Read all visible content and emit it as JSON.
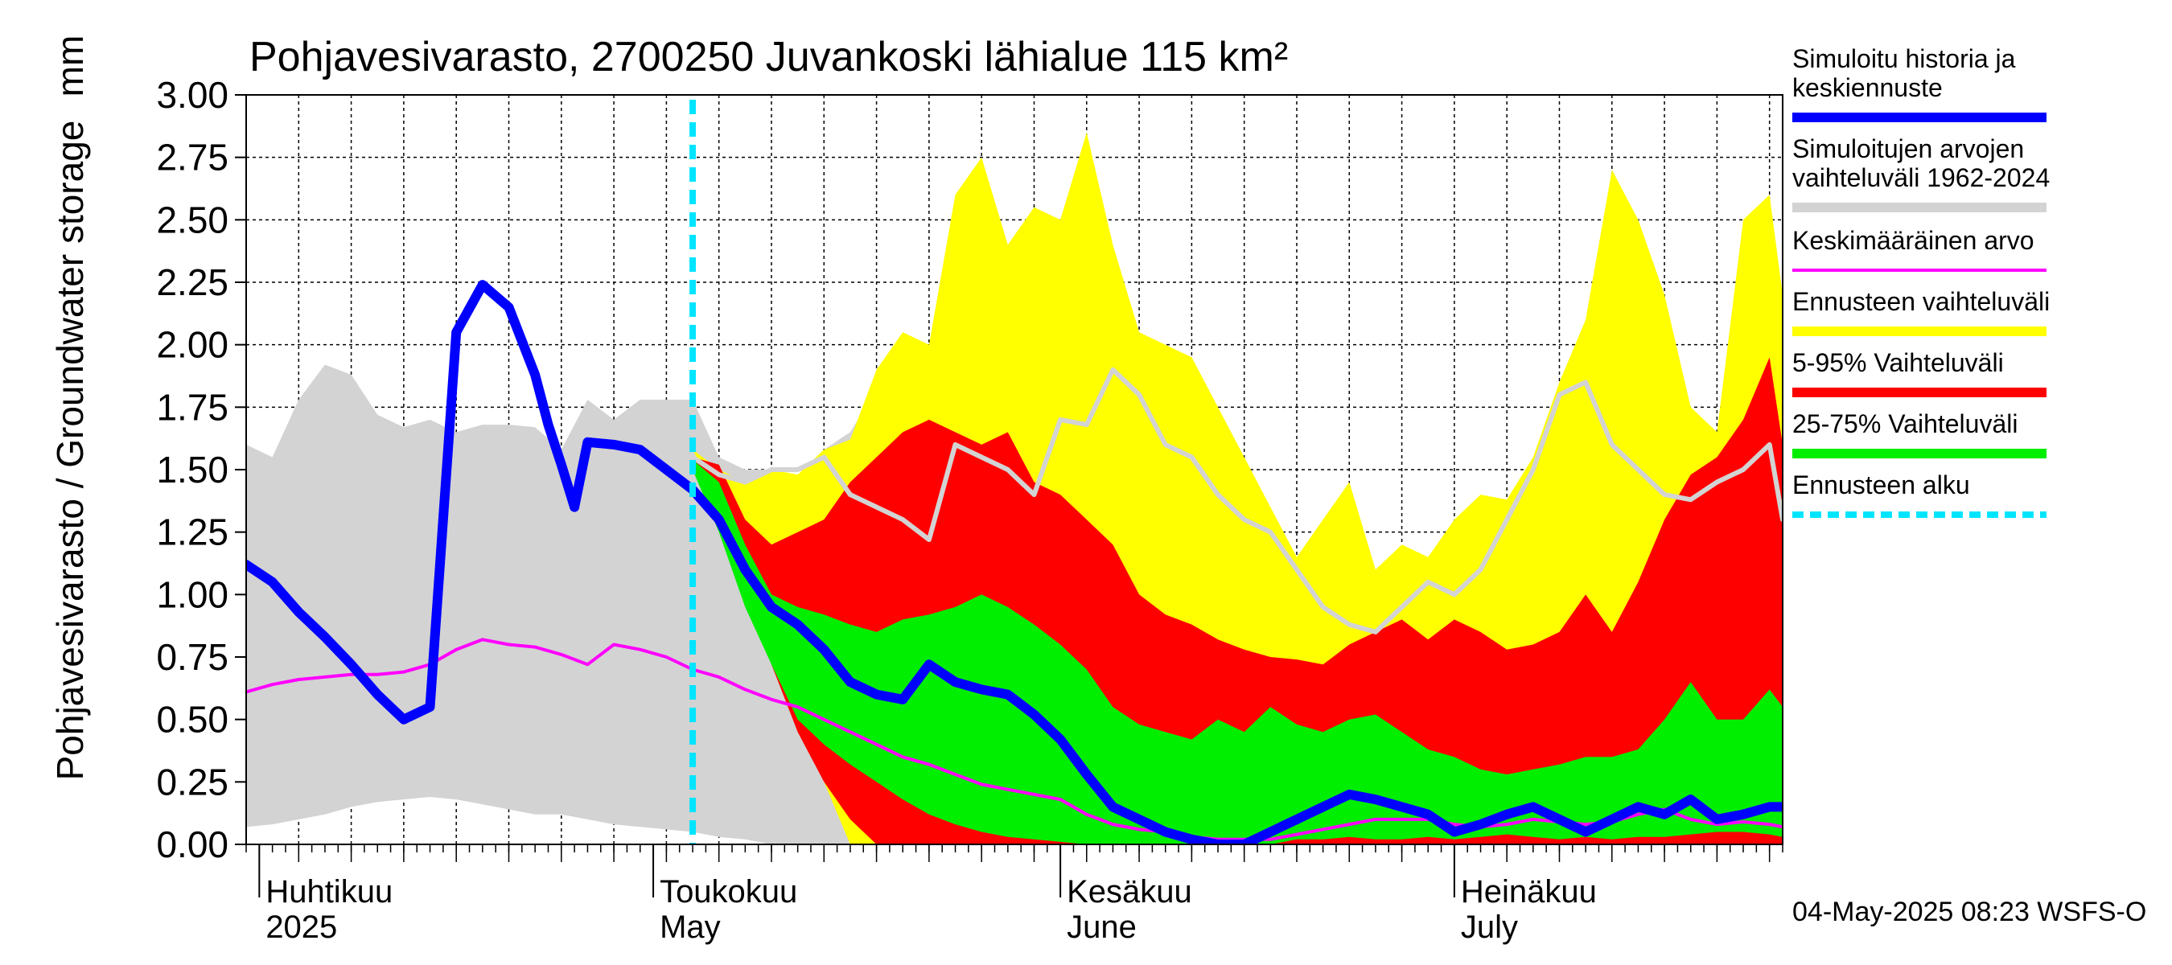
{
  "chart_data": {
    "type": "area",
    "title": "Pohjavesivarasto, 2700250 Juvankoski lähialue 115 km²",
    "ylabel": "Pohjavesivarasto / Groundwater storage",
    "yunit": "mm",
    "ylim": [
      0,
      3.0
    ],
    "yticks": [
      "0.00",
      "0.25",
      "0.50",
      "0.75",
      "1.00",
      "1.25",
      "1.50",
      "1.75",
      "2.00",
      "2.25",
      "2.50",
      "2.75",
      "3.00"
    ],
    "xlim": [
      "2025-03-31",
      "2025-07-26"
    ],
    "month_labels": [
      {
        "fi": "Huhtikuu",
        "en": "2025",
        "date": "2025-04-01"
      },
      {
        "fi": "Toukokuu",
        "en": "May",
        "date": "2025-05-01"
      },
      {
        "fi": "Kesäkuu",
        "en": "June",
        "date": "2025-06-01"
      },
      {
        "fi": "Heinäkuu",
        "en": "July",
        "date": "2025-07-01"
      }
    ],
    "forecast_start": "2025-05-04",
    "footer": "04-May-2025 08:23 WSFS-O",
    "grid": true,
    "legend_position": "right",
    "colors": {
      "history": "#0000ff",
      "hist_range": "#d3d3d3",
      "mean": "#ff00ff",
      "forecast_range": "#ffff00",
      "p5_95": "#ff0000",
      "p25_75": "#00ee00",
      "forecast_start": "#00e5ff",
      "median_hist": "#d3d3d3"
    },
    "legend": [
      {
        "label": "Simuloitu historia ja keskiennuste",
        "color": "#0000ff",
        "style": "thick"
      },
      {
        "label": "Simuloitujen arvojen vaihteluväli 1962-2024",
        "color": "#d3d3d3",
        "style": "thick"
      },
      {
        "label": "Keskimääräinen arvo",
        "color": "#ff00ff",
        "style": "thin"
      },
      {
        "label": "Ennusteen vaihteluväli",
        "color": "#ffff00",
        "style": "thick"
      },
      {
        "label": "5-95% Vaihteluväli",
        "color": "#ff0000",
        "style": "thick"
      },
      {
        "label": "25-75% Vaihteluväli",
        "color": "#00ee00",
        "style": "thick"
      },
      {
        "label": "Ennusteen alku",
        "color": "#00e5ff",
        "style": "dashed"
      }
    ],
    "series": [
      {
        "name": "Simulated history range",
        "type": "band",
        "x": [
          "2025-03-31",
          "2025-04-02",
          "2025-04-04",
          "2025-04-06",
          "2025-04-08",
          "2025-04-10",
          "2025-04-12",
          "2025-04-14",
          "2025-04-16",
          "2025-04-18",
          "2025-04-20",
          "2025-04-22",
          "2025-04-24",
          "2025-04-26",
          "2025-04-28",
          "2025-04-30",
          "2025-05-02",
          "2025-05-04",
          "2025-05-06",
          "2025-05-08",
          "2025-05-10",
          "2025-05-12",
          "2025-05-14",
          "2025-05-16",
          "2025-05-18",
          "2025-05-20",
          "2025-05-22",
          "2025-05-24",
          "2025-05-26",
          "2025-05-28",
          "2025-05-30"
        ],
        "upper": [
          1.6,
          1.55,
          1.78,
          1.92,
          1.88,
          1.72,
          1.67,
          1.7,
          1.65,
          1.68,
          1.68,
          1.67,
          1.58,
          1.78,
          1.7,
          1.78,
          1.78,
          1.78,
          1.55,
          1.5,
          1.5,
          1.45,
          1.58,
          1.65,
          1.82,
          1.6,
          1.4,
          1.35,
          1.38,
          1.25,
          1.25
        ],
        "lower": [
          0.07,
          0.08,
          0.1,
          0.12,
          0.15,
          0.17,
          0.18,
          0.19,
          0.18,
          0.16,
          0.14,
          0.12,
          0.12,
          0.1,
          0.08,
          0.07,
          0.06,
          0.05,
          0.03,
          0.02,
          0.0,
          0.0,
          0.0,
          0.0,
          0.0,
          0.0,
          0.0,
          0.0,
          0.0,
          0.0,
          0.0
        ]
      },
      {
        "name": "Ennusteen vaihteluväli",
        "type": "band",
        "x": [
          "2025-05-04",
          "2025-05-06",
          "2025-05-08",
          "2025-05-10",
          "2025-05-12",
          "2025-05-14",
          "2025-05-16",
          "2025-05-18",
          "2025-05-20",
          "2025-05-22",
          "2025-05-24",
          "2025-05-26",
          "2025-05-28",
          "2025-05-30",
          "2025-06-01",
          "2025-06-03",
          "2025-06-05",
          "2025-06-07",
          "2025-06-09",
          "2025-06-11",
          "2025-06-13",
          "2025-06-15",
          "2025-06-17",
          "2025-06-19",
          "2025-06-21",
          "2025-06-23",
          "2025-06-25",
          "2025-06-27",
          "2025-06-29",
          "2025-07-01",
          "2025-07-03",
          "2025-07-05",
          "2025-07-07",
          "2025-07-09",
          "2025-07-11",
          "2025-07-13",
          "2025-07-15",
          "2025-07-17",
          "2025-07-19",
          "2025-07-21",
          "2025-07-23",
          "2025-07-25",
          "2025-07-26"
        ],
        "upper": [
          1.58,
          1.5,
          1.45,
          1.5,
          1.48,
          1.58,
          1.62,
          1.9,
          2.05,
          2.0,
          2.6,
          2.75,
          2.4,
          2.55,
          2.5,
          2.85,
          2.4,
          2.05,
          2.0,
          1.95,
          1.75,
          1.55,
          1.35,
          1.15,
          1.3,
          1.45,
          1.1,
          1.2,
          1.15,
          1.3,
          1.4,
          1.38,
          1.55,
          1.85,
          2.1,
          2.7,
          2.5,
          2.2,
          1.75,
          1.65,
          2.5,
          2.6,
          2.2
        ],
        "lower": [
          1.58,
          1.38,
          1.05,
          0.75,
          0.5,
          0.25,
          0.0,
          0.0,
          0.0,
          0.0,
          0.0,
          0.0,
          0.0,
          0.0,
          0.0,
          0.0,
          0.0,
          0.0,
          0.0,
          0.0,
          0.0,
          0.0,
          0.0,
          0.0,
          0.0,
          0.0,
          0.0,
          0.0,
          0.0,
          0.0,
          0.0,
          0.0,
          0.0,
          0.0,
          0.0,
          0.0,
          0.0,
          0.0,
          0.0,
          0.0,
          0.0,
          0.0,
          0.0
        ]
      },
      {
        "name": "5-95% Vaihteluväli",
        "type": "band",
        "x": [
          "2025-05-04",
          "2025-05-06",
          "2025-05-08",
          "2025-05-10",
          "2025-05-12",
          "2025-05-14",
          "2025-05-16",
          "2025-05-18",
          "2025-05-20",
          "2025-05-22",
          "2025-05-24",
          "2025-05-26",
          "2025-05-28",
          "2025-05-30",
          "2025-06-01",
          "2025-06-03",
          "2025-06-05",
          "2025-06-07",
          "2025-06-09",
          "2025-06-11",
          "2025-06-13",
          "2025-06-15",
          "2025-06-17",
          "2025-06-19",
          "2025-06-21",
          "2025-06-23",
          "2025-06-25",
          "2025-06-27",
          "2025-06-29",
          "2025-07-01",
          "2025-07-03",
          "2025-07-05",
          "2025-07-07",
          "2025-07-09",
          "2025-07-11",
          "2025-07-13",
          "2025-07-15",
          "2025-07-17",
          "2025-07-19",
          "2025-07-21",
          "2025-07-23",
          "2025-07-25",
          "2025-07-26"
        ],
        "upper": [
          1.55,
          1.52,
          1.3,
          1.2,
          1.25,
          1.3,
          1.45,
          1.55,
          1.65,
          1.7,
          1.65,
          1.6,
          1.65,
          1.45,
          1.4,
          1.3,
          1.2,
          1.0,
          0.92,
          0.88,
          0.82,
          0.78,
          0.75,
          0.74,
          0.72,
          0.8,
          0.85,
          0.9,
          0.82,
          0.9,
          0.85,
          0.78,
          0.8,
          0.85,
          1.0,
          0.85,
          1.05,
          1.3,
          1.48,
          1.55,
          1.7,
          1.95,
          1.6
        ],
        "lower": [
          1.52,
          1.3,
          1.0,
          0.72,
          0.45,
          0.25,
          0.1,
          0.0,
          0.0,
          0.0,
          0.0,
          0.0,
          0.0,
          0.0,
          0.0,
          0.0,
          0.0,
          0.0,
          0.0,
          0.0,
          0.0,
          0.0,
          0.0,
          0.0,
          0.0,
          0.0,
          0.0,
          0.0,
          0.0,
          0.0,
          0.0,
          0.0,
          0.0,
          0.0,
          0.0,
          0.0,
          0.0,
          0.0,
          0.0,
          0.0,
          0.0,
          0.0,
          0.0
        ]
      },
      {
        "name": "25-75% Vaihteluväli",
        "type": "band",
        "x": [
          "2025-05-04",
          "2025-05-06",
          "2025-05-08",
          "2025-05-10",
          "2025-05-12",
          "2025-05-14",
          "2025-05-16",
          "2025-05-18",
          "2025-05-20",
          "2025-05-22",
          "2025-05-24",
          "2025-05-26",
          "2025-05-28",
          "2025-05-30",
          "2025-06-01",
          "2025-06-03",
          "2025-06-05",
          "2025-06-07",
          "2025-06-09",
          "2025-06-11",
          "2025-06-13",
          "2025-06-15",
          "2025-06-17",
          "2025-06-19",
          "2025-06-21",
          "2025-06-23",
          "2025-06-25",
          "2025-06-27",
          "2025-06-29",
          "2025-07-01",
          "2025-07-03",
          "2025-07-05",
          "2025-07-07",
          "2025-07-09",
          "2025-07-11",
          "2025-07-13",
          "2025-07-15",
          "2025-07-17",
          "2025-07-19",
          "2025-07-21",
          "2025-07-23",
          "2025-07-25",
          "2025-07-26"
        ],
        "upper": [
          1.54,
          1.45,
          1.2,
          1.0,
          0.95,
          0.92,
          0.88,
          0.85,
          0.9,
          0.92,
          0.95,
          1.0,
          0.95,
          0.88,
          0.8,
          0.7,
          0.55,
          0.48,
          0.45,
          0.42,
          0.5,
          0.45,
          0.55,
          0.48,
          0.45,
          0.5,
          0.52,
          0.45,
          0.38,
          0.35,
          0.3,
          0.28,
          0.3,
          0.32,
          0.35,
          0.35,
          0.38,
          0.5,
          0.65,
          0.5,
          0.5,
          0.62,
          0.55
        ],
        "lower": [
          1.5,
          1.25,
          0.95,
          0.72,
          0.5,
          0.4,
          0.32,
          0.25,
          0.18,
          0.12,
          0.08,
          0.05,
          0.03,
          0.02,
          0.01,
          0.0,
          0.0,
          0.0,
          0.0,
          0.0,
          0.0,
          0.0,
          0.0,
          0.02,
          0.02,
          0.03,
          0.02,
          0.02,
          0.03,
          0.02,
          0.03,
          0.04,
          0.03,
          0.02,
          0.03,
          0.02,
          0.03,
          0.03,
          0.04,
          0.05,
          0.05,
          0.04,
          0.03
        ]
      },
      {
        "name": "Simuloitu historia ja keskiennuste",
        "type": "line",
        "x": [
          "2025-03-31",
          "2025-04-02",
          "2025-04-04",
          "2025-04-06",
          "2025-04-08",
          "2025-04-10",
          "2025-04-12",
          "2025-04-14",
          "2025-04-16",
          "2025-04-18",
          "2025-04-20",
          "2025-04-22",
          "2025-04-23",
          "2025-04-24",
          "2025-04-25",
          "2025-04-26",
          "2025-04-28",
          "2025-04-30",
          "2025-05-02",
          "2025-05-04",
          "2025-05-06",
          "2025-05-08",
          "2025-05-10",
          "2025-05-12",
          "2025-05-14",
          "2025-05-16",
          "2025-05-18",
          "2025-05-20",
          "2025-05-22",
          "2025-05-24",
          "2025-05-26",
          "2025-05-28",
          "2025-05-30",
          "2025-06-01",
          "2025-06-03",
          "2025-06-05",
          "2025-06-07",
          "2025-06-09",
          "2025-06-11",
          "2025-06-13",
          "2025-06-15",
          "2025-06-17",
          "2025-06-19",
          "2025-06-21",
          "2025-06-23",
          "2025-06-25",
          "2025-06-27",
          "2025-06-29",
          "2025-07-01",
          "2025-07-03",
          "2025-07-05",
          "2025-07-07",
          "2025-07-09",
          "2025-07-11",
          "2025-07-13",
          "2025-07-15",
          "2025-07-17",
          "2025-07-19",
          "2025-07-21",
          "2025-07-23",
          "2025-07-25",
          "2025-07-26"
        ],
        "values": [
          1.12,
          1.05,
          0.93,
          0.83,
          0.72,
          0.6,
          0.5,
          0.55,
          2.05,
          2.24,
          2.15,
          1.88,
          1.68,
          1.52,
          1.35,
          1.61,
          1.6,
          1.58,
          1.5,
          1.42,
          1.3,
          1.1,
          0.95,
          0.88,
          0.78,
          0.65,
          0.6,
          0.58,
          0.72,
          0.65,
          0.62,
          0.6,
          0.52,
          0.42,
          0.28,
          0.15,
          0.1,
          0.05,
          0.02,
          0.0,
          0.0,
          0.05,
          0.1,
          0.15,
          0.2,
          0.18,
          0.15,
          0.12,
          0.05,
          0.08,
          0.12,
          0.15,
          0.1,
          0.05,
          0.1,
          0.15,
          0.12,
          0.18,
          0.1,
          0.12,
          0.15,
          0.15
        ]
      },
      {
        "name": "Keskimääräinen arvo",
        "type": "line",
        "x": [
          "2025-03-31",
          "2025-04-02",
          "2025-04-04",
          "2025-04-06",
          "2025-04-08",
          "2025-04-10",
          "2025-04-12",
          "2025-04-14",
          "2025-04-16",
          "2025-04-18",
          "2025-04-20",
          "2025-04-22",
          "2025-04-24",
          "2025-04-26",
          "2025-04-28",
          "2025-04-30",
          "2025-05-02",
          "2025-05-04",
          "2025-05-06",
          "2025-05-08",
          "2025-05-10",
          "2025-05-12",
          "2025-05-14",
          "2025-05-16",
          "2025-05-18",
          "2025-05-20",
          "2025-05-22",
          "2025-05-24",
          "2025-05-26",
          "2025-05-28",
          "2025-05-30",
          "2025-06-01",
          "2025-06-03",
          "2025-06-05",
          "2025-06-07",
          "2025-06-09",
          "2025-06-11",
          "2025-06-13",
          "2025-06-15",
          "2025-06-17",
          "2025-06-19",
          "2025-06-21",
          "2025-06-23",
          "2025-06-25",
          "2025-06-27",
          "2025-06-29",
          "2025-07-01",
          "2025-07-03",
          "2025-07-05",
          "2025-07-07",
          "2025-07-09",
          "2025-07-11",
          "2025-07-13",
          "2025-07-15",
          "2025-07-17",
          "2025-07-19",
          "2025-07-21",
          "2025-07-23",
          "2025-07-25",
          "2025-07-26"
        ],
        "values": [
          0.61,
          0.64,
          0.66,
          0.67,
          0.68,
          0.68,
          0.69,
          0.72,
          0.78,
          0.82,
          0.8,
          0.79,
          0.76,
          0.72,
          0.8,
          0.78,
          0.75,
          0.7,
          0.67,
          0.62,
          0.58,
          0.55,
          0.5,
          0.45,
          0.4,
          0.35,
          0.32,
          0.28,
          0.24,
          0.22,
          0.2,
          0.18,
          0.12,
          0.08,
          0.06,
          0.05,
          0.03,
          0.02,
          0.02,
          0.02,
          0.04,
          0.06,
          0.08,
          0.1,
          0.1,
          0.1,
          0.08,
          0.07,
          0.08,
          0.1,
          0.09,
          0.08,
          0.09,
          0.12,
          0.14,
          0.1,
          0.08,
          0.09,
          0.08,
          0.07
        ]
      },
      {
        "name": "Median simulated",
        "type": "line",
        "x": [
          "2025-05-04",
          "2025-05-06",
          "2025-05-08",
          "2025-05-10",
          "2025-05-12",
          "2025-05-14",
          "2025-05-16",
          "2025-05-18",
          "2025-05-20",
          "2025-05-22",
          "2025-05-24",
          "2025-05-26",
          "2025-05-28",
          "2025-05-30",
          "2025-06-01",
          "2025-06-03",
          "2025-06-05",
          "2025-06-07",
          "2025-06-09",
          "2025-06-11",
          "2025-06-13",
          "2025-06-15",
          "2025-06-17",
          "2025-06-19",
          "2025-06-21",
          "2025-06-23",
          "2025-06-25",
          "2025-06-27",
          "2025-06-29",
          "2025-07-01",
          "2025-07-03",
          "2025-07-05",
          "2025-07-07",
          "2025-07-09",
          "2025-07-11",
          "2025-07-13",
          "2025-07-15",
          "2025-07-17",
          "2025-07-19",
          "2025-07-21",
          "2025-07-23",
          "2025-07-25",
          "2025-07-26"
        ],
        "values": [
          1.55,
          1.48,
          1.45,
          1.5,
          1.5,
          1.55,
          1.4,
          1.35,
          1.3,
          1.22,
          1.6,
          1.55,
          1.5,
          1.4,
          1.7,
          1.68,
          1.9,
          1.8,
          1.6,
          1.55,
          1.4,
          1.3,
          1.25,
          1.1,
          0.95,
          0.88,
          0.85,
          0.95,
          1.05,
          1.0,
          1.1,
          1.3,
          1.5,
          1.8,
          1.85,
          1.6,
          1.5,
          1.4,
          1.38,
          1.45,
          1.5,
          1.6,
          1.3
        ]
      }
    ]
  }
}
